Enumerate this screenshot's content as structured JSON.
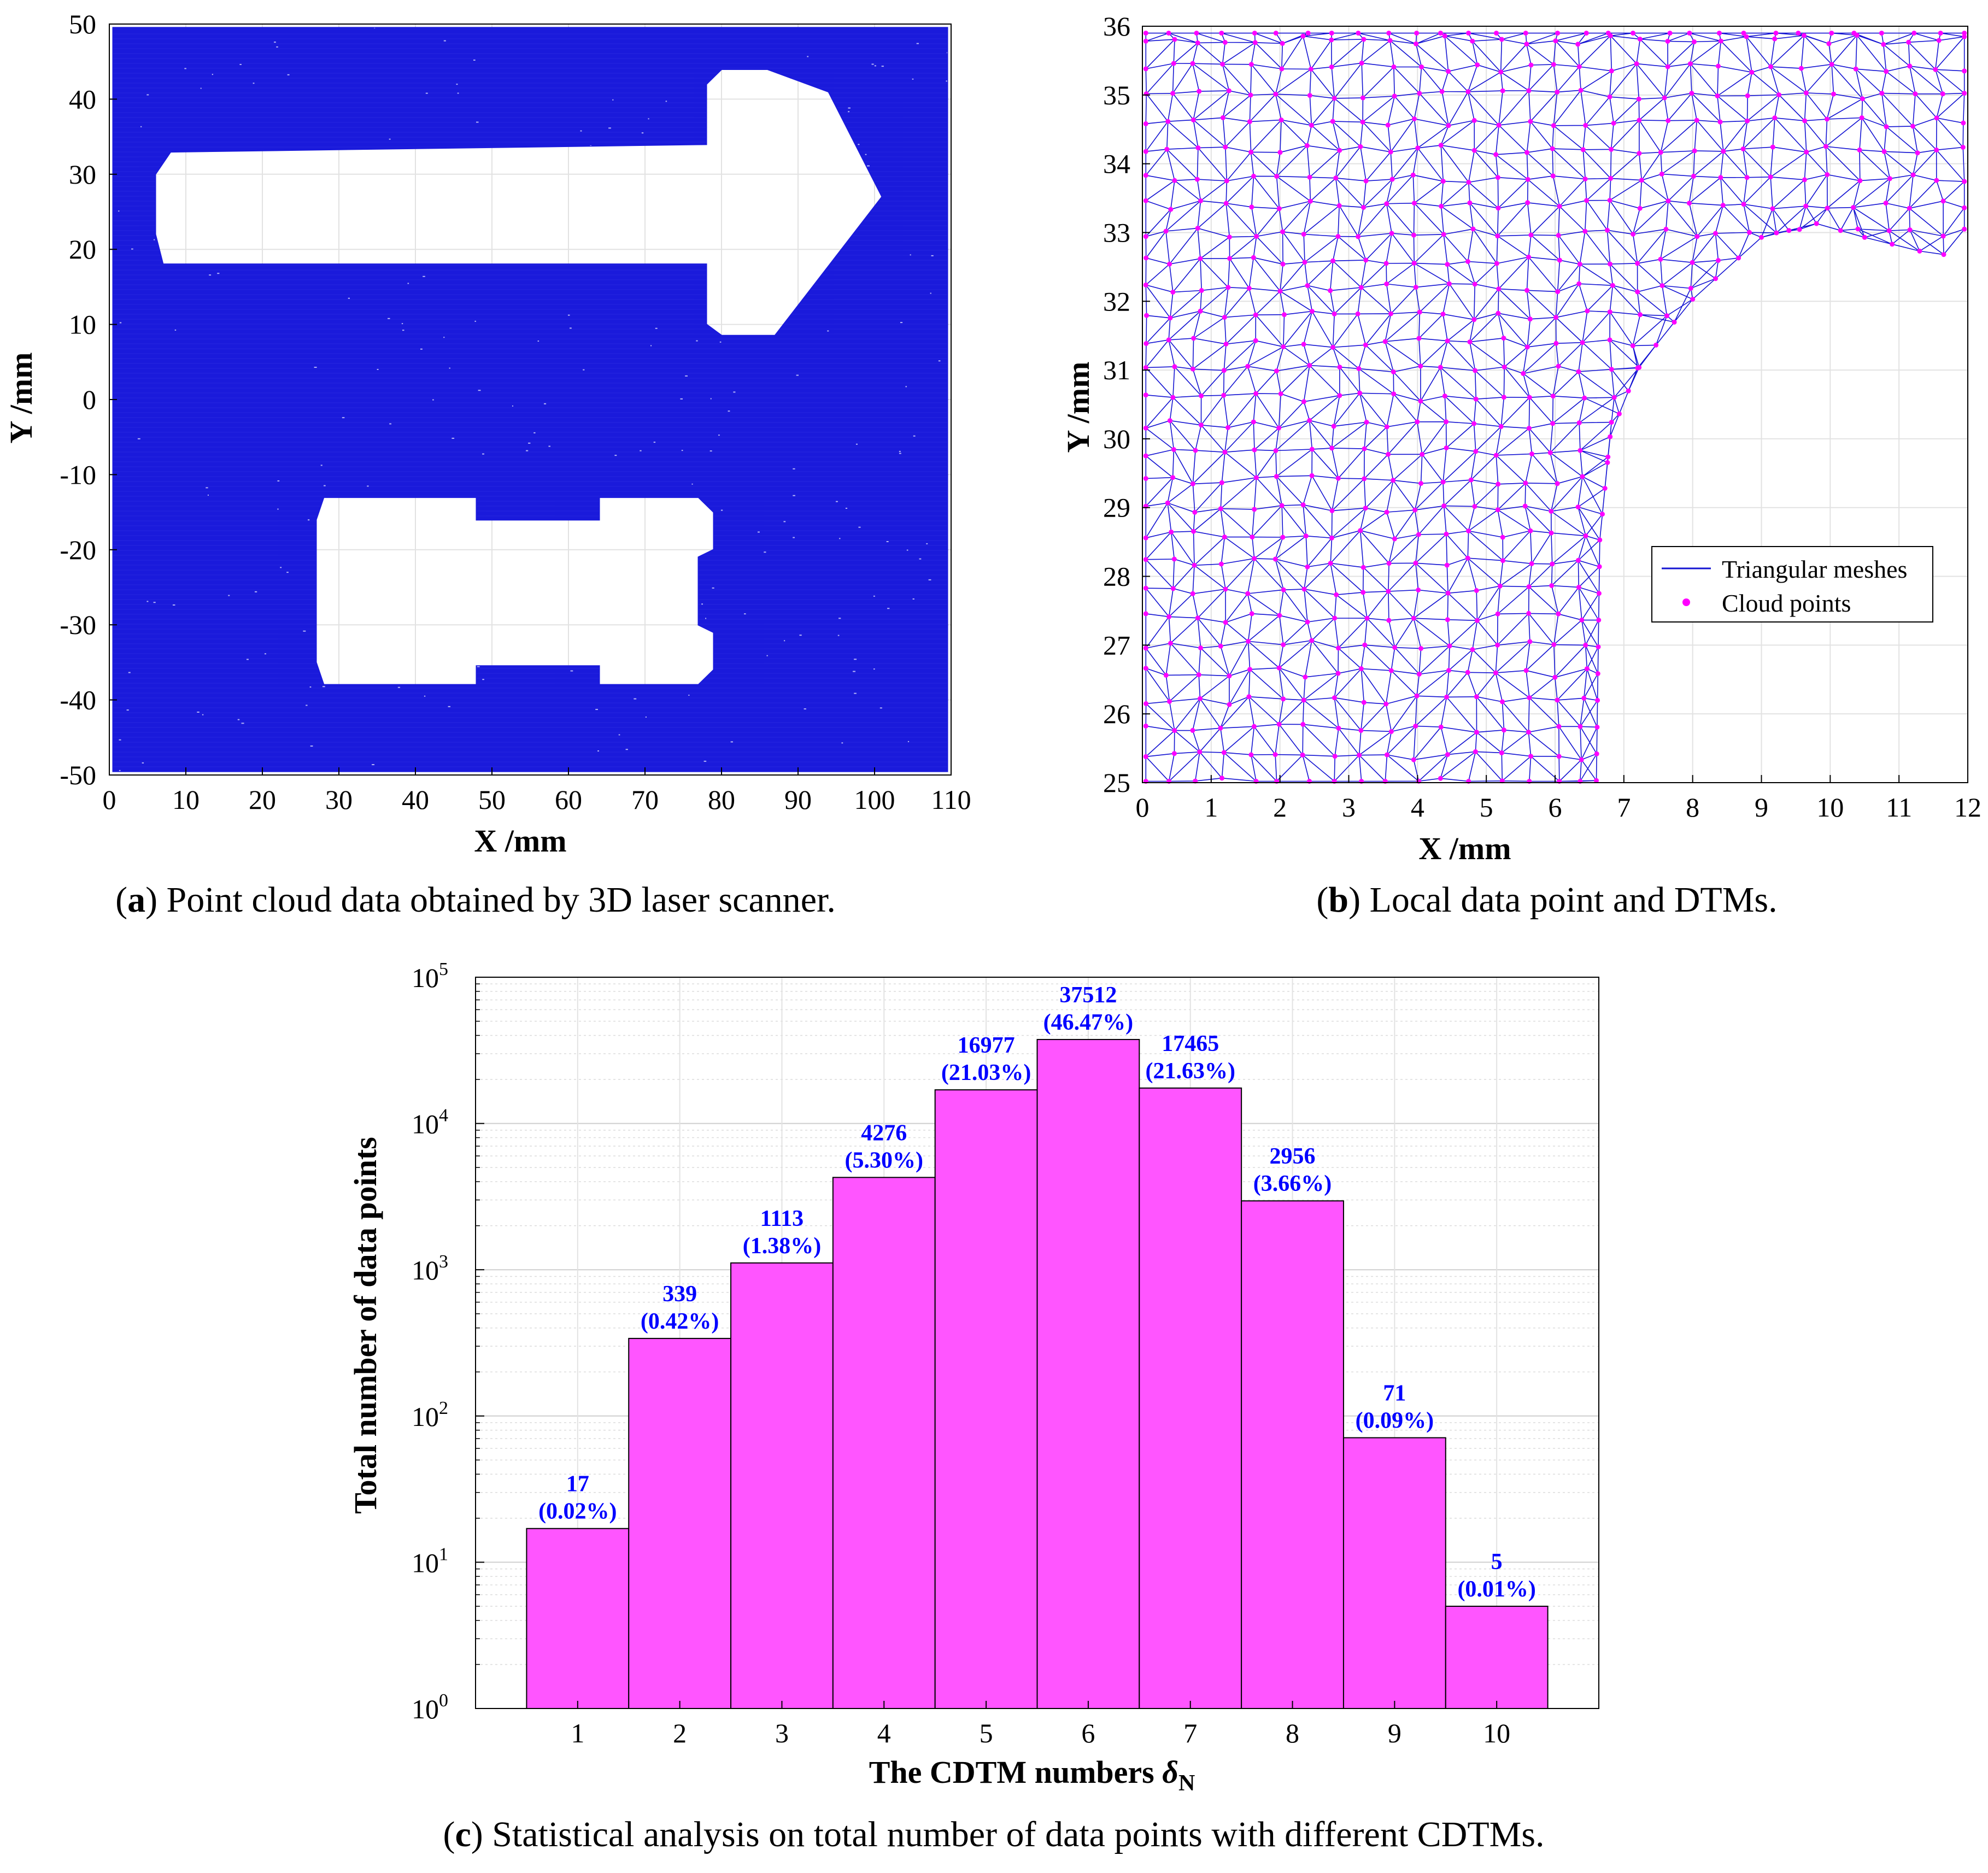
{
  "captions": {
    "a": {
      "letter": "a",
      "text": " Point cloud data obtained by 3D laser scanner."
    },
    "b": {
      "letter": "b",
      "text": " Local data point and DTMs."
    },
    "c": {
      "letter": "c",
      "text": " Statistical analysis on total number of data points with different CDTMs."
    }
  },
  "colors": {
    "cloud_blue": "#1a1adb",
    "mesh_blue": "#1414d2",
    "point_magenta": "#ff00ff",
    "bar_fill": "#ff55ff",
    "bar_label": "#0000ff"
  },
  "chart_data": [
    {
      "panel": "a",
      "type": "scatter",
      "title": "",
      "xlabel": "X /mm",
      "ylabel": "Y /mm",
      "xlim": [
        0,
        110
      ],
      "ylim": [
        -50,
        50
      ],
      "xticks": [
        "0",
        "10",
        "20",
        "30",
        "40",
        "50",
        "60",
        "70",
        "80",
        "90",
        "100",
        "110"
      ],
      "yticks": [
        "50",
        "40",
        "30",
        "20",
        "10",
        "0",
        "-10",
        "-20",
        "-30",
        "-40",
        "-50"
      ],
      "grid": true,
      "cloud_extent": {
        "x": [
          0.5,
          109.5
        ],
        "y": [
          -49.5,
          49.5
        ]
      },
      "holes": [
        {
          "name": "arrow",
          "outline": [
            [
              6,
              22
            ],
            [
              7,
              18
            ],
            [
              78,
              18
            ],
            [
              78,
              10
            ],
            [
              80,
              8.5
            ],
            [
              87,
              8.5
            ],
            [
              101,
              27
            ],
            [
              94,
              41
            ],
            [
              86,
              44
            ],
            [
              80,
              44
            ],
            [
              78,
              42
            ],
            [
              78,
              34
            ],
            [
              8,
              33
            ],
            [
              6,
              30
            ]
          ]
        },
        {
          "name": "block",
          "outline": [
            [
              28,
              -38
            ],
            [
              48,
              -38
            ],
            [
              48,
              -35.5
            ],
            [
              64,
              -35.5
            ],
            [
              64,
              -38
            ],
            [
              77,
              -38
            ],
            [
              79,
              -36
            ],
            [
              79,
              -31
            ],
            [
              77,
              -30
            ],
            [
              77,
              -21
            ],
            [
              79,
              -20
            ],
            [
              79,
              -15
            ],
            [
              77,
              -13
            ],
            [
              64,
              -13
            ],
            [
              64,
              -16
            ],
            [
              48,
              -16
            ],
            [
              48,
              -13
            ],
            [
              28,
              -13
            ],
            [
              27,
              -16
            ],
            [
              27,
              -35
            ]
          ]
        }
      ]
    },
    {
      "panel": "b",
      "type": "scatter",
      "title": "",
      "xlabel": "X /mm",
      "ylabel": "Y /mm",
      "xlim": [
        0,
        12
      ],
      "ylim": [
        25,
        36
      ],
      "xticks": [
        "0",
        "1",
        "2",
        "3",
        "4",
        "5",
        "6",
        "7",
        "8",
        "9",
        "10",
        "11",
        "12"
      ],
      "yticks": [
        "36",
        "35",
        "34",
        "33",
        "32",
        "31",
        "30",
        "29",
        "28",
        "27",
        "26",
        "25"
      ],
      "grid": true,
      "point_spacing_mm": 0.4,
      "boundary": [
        [
          6.6,
          25
        ],
        [
          6.65,
          28.5
        ],
        [
          6.8,
          30
        ],
        [
          7.2,
          31
        ],
        [
          8,
          32
        ],
        [
          9,
          32.9
        ],
        [
          9.8,
          33.1
        ],
        [
          10.5,
          32.9
        ],
        [
          11.3,
          32.7
        ],
        [
          12,
          32.6
        ]
      ],
      "series": [
        {
          "name": "Triangular meshes",
          "kind": "line"
        },
        {
          "name": "Cloud points",
          "kind": "marker"
        }
      ],
      "legend": "lower-right"
    },
    {
      "panel": "c",
      "type": "bar",
      "title": "",
      "xlabel": "The CDTM numbers δN",
      "ylabel": "Total number of data points",
      "yscale": "log",
      "ylim": [
        1,
        100000
      ],
      "yticks": [
        "10^0",
        "10^1",
        "10^2",
        "10^3",
        "10^4",
        "10^5"
      ],
      "grid": true,
      "categories": [
        "1",
        "2",
        "3",
        "4",
        "5",
        "6",
        "7",
        "8",
        "9",
        "10"
      ],
      "values": [
        17,
        339,
        1113,
        4276,
        16977,
        37512,
        17465,
        2956,
        71,
        5
      ],
      "value_labels": [
        "17",
        "339",
        "1113",
        "4276",
        "16977",
        "37512",
        "17465",
        "2956",
        "71",
        "5"
      ],
      "percent_labels": [
        "(0.02%)",
        "(0.42%)",
        "(1.38%)",
        "(5.30%)",
        "(21.03%)",
        "(46.47%)",
        "(21.63%)",
        "(3.66%)",
        "(0.09%)",
        "(0.01%)"
      ]
    }
  ]
}
